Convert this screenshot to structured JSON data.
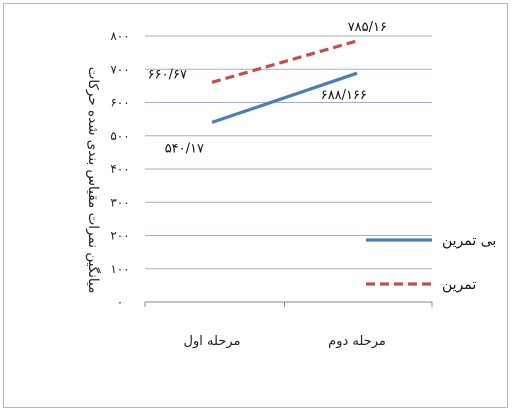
{
  "chart_data": {
    "type": "line",
    "categories": [
      "مرحله اول",
      "مرحله دوم"
    ],
    "series": [
      {
        "name": "بی تمرین",
        "values": [
          540.17,
          688.166
        ],
        "labels": [
          "۵۴۰/۱۷",
          "۶۸۸/۱۶۶"
        ],
        "color": "#4a7ebb",
        "style": "solid"
      },
      {
        "name": "تمرین",
        "values": [
          660.67,
          785.16
        ],
        "labels": [
          "۶۶۰/۶۷",
          "۷۸۵/۱۶"
        ],
        "color": "#c0504d",
        "style": "dashed"
      }
    ],
    "ylabel": "میانگین نمرات مقیاس بندی شده حرکات",
    "xlabel": "",
    "ylim": [
      0,
      800
    ],
    "yticks": [
      0,
      100,
      200,
      300,
      400,
      500,
      600,
      700,
      800
    ],
    "ytick_labels": [
      "۰",
      "۱۰۰",
      "۲۰۰",
      "۳۰۰",
      "۴۰۰",
      "۵۰۰",
      "۶۰۰",
      "۷۰۰",
      "۸۰۰"
    ],
    "grid": true,
    "legend_position": "right"
  }
}
